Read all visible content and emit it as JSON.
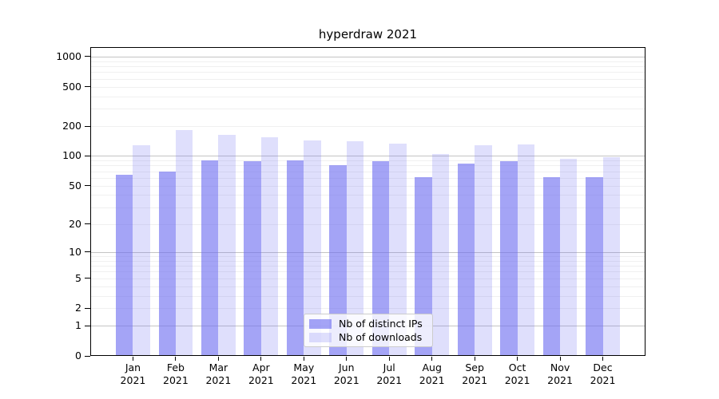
{
  "chart": {
    "title": "hyperdraw 2021"
  },
  "style": {
    "background": "#ffffff",
    "axis_color": "#000000",
    "text_color": "#000000",
    "grid_major_color": "#c4c4c4",
    "grid_minor_color": "#f0f0f0",
    "legend_border_color": "#cccccc",
    "legend_background": "rgba(255,255,255,0.8)",
    "bar_ips_color": "rgba(108,108,240,0.62)",
    "bar_downloads_color": "rgba(108,108,240,0.22)"
  },
  "chart_data": {
    "type": "bar",
    "title": "hyperdraw 2021",
    "categories": [
      "Jan 2021",
      "Feb 2021",
      "Mar 2021",
      "Apr 2021",
      "May 2021",
      "Jun 2021",
      "Jul 2021",
      "Aug 2021",
      "Sep 2021",
      "Oct 2021",
      "Nov 2021",
      "Dec 2021"
    ],
    "series": [
      {
        "name": "Nb of distinct IPs",
        "color": "rgba(108,108,240,0.62)",
        "values": [
          64,
          69,
          90,
          88,
          91,
          80,
          89,
          61,
          83,
          88,
          61,
          61
        ]
      },
      {
        "name": "Nb of downloads",
        "color": "rgba(108,108,240,0.22)",
        "values": [
          128,
          184,
          164,
          155,
          144,
          141,
          133,
          105,
          129,
          131,
          94,
          98
        ]
      }
    ],
    "xlabel": "",
    "ylabel": "",
    "y_scale": "symlog: position proportional to log10(1+value)",
    "y_ticks": [
      0,
      1,
      2,
      5,
      10,
      20,
      50,
      100,
      200,
      500,
      1000
    ],
    "y_major_gridlines": [
      1,
      10,
      100,
      1000
    ],
    "y_minor_gridline_pattern_per_decade": [
      2,
      3,
      4,
      5,
      6,
      7,
      8,
      9
    ],
    "ylim": [
      0,
      1300
    ],
    "grid": "horizontal",
    "legend_position": "lower center"
  }
}
